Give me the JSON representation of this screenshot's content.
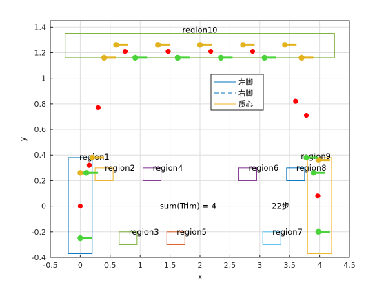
{
  "chart_data": {
    "type": "scatter",
    "xlabel": "x",
    "ylabel": "y",
    "xlim": [
      -0.5,
      4.5
    ],
    "ylim": [
      -0.4,
      1.45
    ],
    "xticks": [
      "-0.5",
      "0",
      "0.5",
      "1",
      "1.5",
      "2",
      "2.5",
      "3",
      "3.5",
      "4",
      "4.5"
    ],
    "yticks": [
      "-0.4",
      "-0.2",
      "0",
      "0.2",
      "0.4",
      "0.6",
      "0.8",
      "1",
      "1.2",
      "1.4"
    ],
    "grid": true,
    "legend": {
      "placement": "center",
      "entries": [
        {
          "label": "左脚",
          "style": "solid",
          "color": "#0072BD"
        },
        {
          "label": "右脚",
          "style": "dashed",
          "color": "#0072BD"
        },
        {
          "label": "质心",
          "style": "solid",
          "color": "#EDB120"
        }
      ]
    },
    "regions": [
      {
        "name": "region1",
        "x": [
          -0.2,
          0.2
        ],
        "y": [
          -0.37,
          0.38
        ],
        "color": "#0072BD"
      },
      {
        "name": "region2",
        "x": [
          0.25,
          0.55
        ],
        "y": [
          0.2,
          0.3
        ],
        "color": "#EDB120"
      },
      {
        "name": "region3",
        "x": [
          0.65,
          0.95
        ],
        "y": [
          -0.3,
          -0.2
        ],
        "color": "#77AC30"
      },
      {
        "name": "region4",
        "x": [
          1.05,
          1.35
        ],
        "y": [
          0.2,
          0.3
        ],
        "color": "#7E2F8E"
      },
      {
        "name": "region5",
        "x": [
          1.45,
          1.75
        ],
        "y": [
          -0.3,
          -0.2
        ],
        "color": "#D95319"
      },
      {
        "name": "region6",
        "x": [
          2.65,
          2.95
        ],
        "y": [
          0.2,
          0.3
        ],
        "color": "#7E2F8E"
      },
      {
        "name": "region7",
        "x": [
          3.05,
          3.35
        ],
        "y": [
          -0.3,
          -0.2
        ],
        "color": "#4DBEEE"
      },
      {
        "name": "region8",
        "x": [
          3.45,
          3.75
        ],
        "y": [
          0.2,
          0.3
        ],
        "color": "#0072BD"
      },
      {
        "name": "region9",
        "x": [
          3.8,
          4.2
        ],
        "y": [
          -0.37,
          0.38
        ],
        "color": "#EDB120"
      },
      {
        "name": "region10",
        "x": [
          -0.25,
          4.25
        ],
        "y": [
          1.16,
          1.35
        ],
        "color": "#77AC30"
      }
    ],
    "annotations": [
      {
        "text": "sum(Trim) = 4",
        "x": 1.33,
        "y": 0.0
      },
      {
        "text": "22步",
        "x": 3.2,
        "y": 0.0
      }
    ],
    "red_points": [
      [
        0.0,
        0.0
      ],
      [
        0.15,
        0.32
      ],
      [
        0.3,
        0.77
      ],
      [
        0.75,
        1.21
      ],
      [
        1.47,
        1.21
      ],
      [
        2.18,
        1.21
      ],
      [
        2.88,
        1.21
      ],
      [
        3.6,
        0.82
      ],
      [
        3.78,
        0.71
      ],
      [
        3.97,
        0.08
      ]
    ],
    "feet": {
      "green": [
        [
          0.0,
          -0.25
        ],
        [
          0.1,
          0.26
        ],
        [
          0.92,
          1.16
        ],
        [
          1.63,
          1.16
        ],
        [
          2.35,
          1.16
        ],
        [
          3.08,
          1.16
        ],
        [
          3.78,
          0.38
        ],
        [
          3.9,
          0.26
        ],
        [
          3.98,
          -0.2
        ]
      ],
      "yellow": [
        [
          0.0,
          0.26
        ],
        [
          0.2,
          0.38
        ],
        [
          0.4,
          1.16
        ],
        [
          0.6,
          1.26
        ],
        [
          1.3,
          1.26
        ],
        [
          2.0,
          1.26
        ],
        [
          2.72,
          1.26
        ],
        [
          3.42,
          1.26
        ],
        [
          3.7,
          1.16
        ],
        [
          3.98,
          0.36
        ]
      ]
    },
    "colors": {
      "green": "#4AD43A",
      "yellow": "#E2B21F",
      "red": "#FF0000"
    }
  }
}
